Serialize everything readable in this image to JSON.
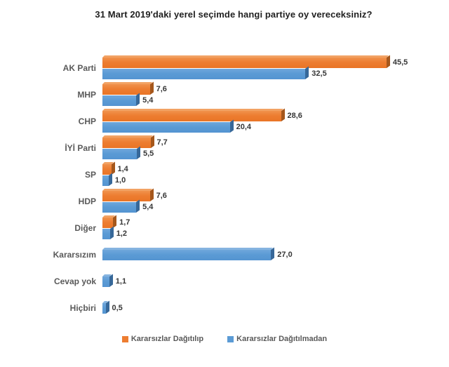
{
  "title": "31 Mart 2019'daki yerel seçimde hangi partiye oy vereceksiniz?",
  "chart_data": {
    "type": "bar",
    "orientation": "horizontal",
    "title": "31 Mart 2019'daki yerel seçimde hangi partiye oy vereceksiniz?",
    "categories": [
      "AK Parti",
      "MHP",
      "CHP",
      "İYİ Parti",
      "SP",
      "HDP",
      "Diğer",
      "Kararsızım",
      "Cevap yok",
      "Hiçbiri"
    ],
    "series": [
      {
        "name": "Kararsızlar Dağıtılıp",
        "color": "#ED7D31",
        "values": [
          45.5,
          7.6,
          28.6,
          7.7,
          1.4,
          7.6,
          1.7,
          null,
          null,
          null
        ]
      },
      {
        "name": "Kararsızlar Dağıtılmadan",
        "color": "#5B9BD5",
        "values": [
          32.5,
          5.4,
          20.4,
          5.5,
          1.0,
          5.4,
          1.2,
          27.0,
          1.1,
          0.5
        ]
      }
    ],
    "value_labels": [
      [
        "45,5",
        "7,6",
        "28,6",
        "7,7",
        "1,4",
        "7,6",
        "1,7",
        null,
        null,
        null
      ],
      [
        "32,5",
        "5,4",
        "20,4",
        "5,5",
        "1,0",
        "5,4",
        "1,2",
        "27,0",
        "1,1",
        "0,5"
      ]
    ],
    "xlim": [
      0,
      48
    ],
    "grid": false,
    "axes_visible": false,
    "legend_position": "bottom",
    "decimal_separator": ","
  },
  "colors": {
    "orange": "#ED7D31",
    "orange_dark": "#A5571C",
    "orange_light": "#F2A263",
    "blue": "#5B9BD5",
    "blue_dark": "#376899",
    "blue_light": "#86B4E0",
    "category_label": "#595959",
    "value_label": "#363636",
    "title": "#1F1F1F",
    "background": "#FFFFFF"
  }
}
